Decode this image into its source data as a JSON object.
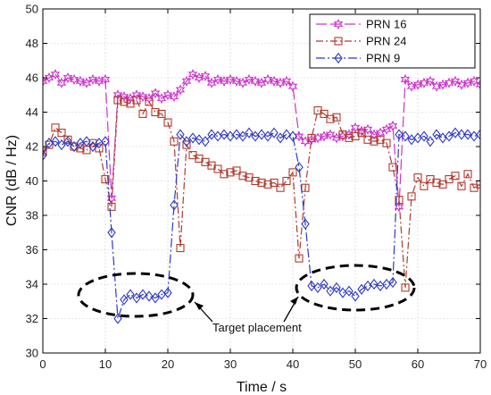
{
  "chart_data": {
    "type": "line",
    "xlabel": "Time / s",
    "ylabel": "CNR (dB / Hz)",
    "xlim": [
      0,
      70
    ],
    "ylim": [
      30,
      50
    ],
    "xticks": [
      0,
      10,
      20,
      30,
      40,
      50,
      60,
      70
    ],
    "yticks": [
      30,
      32,
      34,
      36,
      38,
      40,
      42,
      44,
      46,
      48,
      50
    ],
    "grid": true,
    "legend_position": "top-right",
    "annotation": "Target placement",
    "series": [
      {
        "name": "PRN 16",
        "color": "#cc33cc",
        "marker": "hexagram",
        "x": [
          0,
          1,
          2,
          3,
          4,
          5,
          6,
          7,
          8,
          9,
          10,
          11,
          12,
          13,
          14,
          15,
          16,
          17,
          18,
          19,
          20,
          21,
          22,
          23,
          24,
          25,
          26,
          27,
          28,
          29,
          30,
          31,
          32,
          33,
          34,
          35,
          36,
          37,
          38,
          39,
          40,
          41,
          42,
          43,
          44,
          45,
          46,
          47,
          48,
          49,
          50,
          51,
          52,
          53,
          54,
          55,
          56,
          57,
          58,
          59,
          60,
          61,
          62,
          63,
          64,
          65,
          66,
          67,
          68,
          69,
          70
        ],
        "y": [
          45.8,
          46.0,
          46.2,
          45.7,
          46.0,
          45.9,
          45.8,
          45.7,
          45.9,
          45.8,
          45.9,
          39.0,
          45.0,
          44.9,
          44.8,
          45.0,
          44.9,
          44.8,
          45.1,
          44.8,
          45.0,
          44.9,
          45.3,
          45.8,
          46.2,
          46.0,
          46.1,
          45.7,
          45.9,
          45.8,
          45.9,
          45.8,
          45.7,
          45.9,
          45.8,
          45.7,
          45.9,
          45.8,
          45.7,
          45.8,
          45.5,
          42.6,
          42.3,
          42.4,
          42.5,
          42.6,
          42.7,
          42.5,
          42.6,
          42.7,
          43.1,
          42.9,
          43.0,
          42.7,
          42.8,
          43.0,
          43.2,
          38.5,
          45.9,
          45.5,
          45.6,
          45.7,
          45.8,
          45.5,
          45.6,
          45.7,
          45.8,
          45.6,
          45.7,
          45.8,
          45.6
        ]
      },
      {
        "name": "PRN 24",
        "color": "#b03a2e",
        "marker": "square",
        "x": [
          0,
          1,
          2,
          3,
          4,
          5,
          6,
          7,
          8,
          9,
          10,
          11,
          12,
          13,
          14,
          15,
          16,
          17,
          18,
          19,
          20,
          21,
          22,
          23,
          24,
          25,
          26,
          27,
          28,
          29,
          30,
          31,
          32,
          33,
          34,
          35,
          36,
          37,
          38,
          39,
          40,
          41,
          42,
          43,
          44,
          45,
          46,
          47,
          48,
          49,
          50,
          51,
          52,
          53,
          54,
          55,
          56,
          57,
          58,
          59,
          60,
          61,
          62,
          63,
          64,
          65,
          66,
          67,
          68,
          69,
          70
        ],
        "y": [
          41.7,
          42.1,
          43.1,
          42.8,
          42.4,
          42.0,
          41.9,
          41.8,
          42.2,
          41.9,
          40.1,
          38.5,
          44.7,
          44.6,
          44.5,
          44.7,
          43.9,
          44.6,
          44.0,
          43.9,
          43.4,
          42.3,
          36.1,
          42.1,
          41.5,
          41.3,
          41.1,
          40.9,
          40.7,
          40.4,
          40.5,
          40.6,
          40.3,
          40.2,
          40.0,
          39.9,
          39.8,
          39.9,
          39.6,
          40.0,
          40.5,
          35.5,
          39.6,
          42.5,
          44.1,
          43.9,
          43.6,
          43.7,
          42.7,
          42.5,
          42.6,
          42.8,
          42.4,
          42.3,
          42.4,
          42.2,
          40.8,
          38.9,
          33.8,
          39.1,
          40.2,
          39.7,
          40.1,
          39.9,
          39.8,
          40.1,
          40.3,
          39.7,
          40.4,
          39.6,
          39.8
        ]
      },
      {
        "name": "PRN 9",
        "color": "#2b38c8",
        "marker": "diamond",
        "x": [
          0,
          1,
          2,
          3,
          4,
          5,
          6,
          7,
          8,
          9,
          10,
          11,
          12,
          13,
          14,
          15,
          16,
          17,
          18,
          19,
          20,
          21,
          22,
          23,
          24,
          25,
          26,
          27,
          28,
          29,
          30,
          31,
          32,
          33,
          34,
          35,
          36,
          37,
          38,
          39,
          40,
          41,
          42,
          43,
          44,
          45,
          46,
          47,
          48,
          49,
          50,
          51,
          52,
          53,
          54,
          55,
          56,
          57,
          58,
          59,
          60,
          61,
          62,
          63,
          64,
          65,
          66,
          67,
          68,
          69,
          70
        ],
        "y": [
          41.5,
          42.2,
          42.3,
          42.1,
          42.3,
          42.0,
          42.2,
          42.3,
          42.0,
          42.2,
          42.3,
          37.0,
          32.0,
          33.1,
          33.4,
          33.2,
          33.4,
          33.3,
          33.2,
          33.4,
          33.5,
          38.6,
          42.7,
          42.3,
          42.5,
          42.4,
          42.3,
          42.7,
          42.6,
          42.7,
          42.6,
          42.7,
          42.6,
          42.8,
          42.6,
          42.7,
          42.6,
          42.8,
          42.5,
          42.7,
          42.6,
          40.8,
          37.5,
          33.9,
          33.8,
          34.0,
          33.6,
          33.8,
          33.5,
          33.6,
          33.3,
          33.7,
          33.9,
          34.0,
          33.9,
          34.0,
          34.1,
          42.7,
          42.6,
          42.4,
          42.5,
          42.6,
          42.3,
          42.7,
          42.5,
          42.6,
          42.8,
          42.7,
          42.7,
          42.6,
          42.7
        ]
      }
    ]
  }
}
